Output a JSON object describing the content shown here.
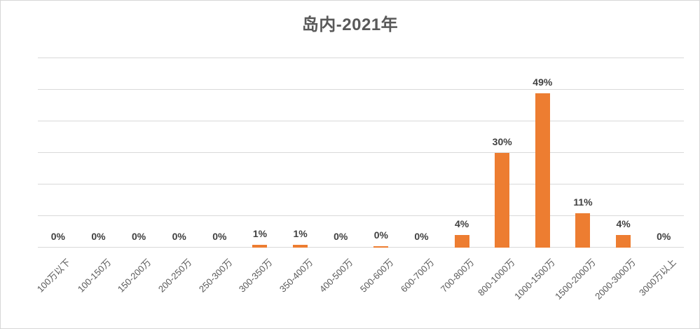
{
  "title": "岛内-2021年",
  "chart_data": {
    "type": "bar",
    "title": "岛内-2021年",
    "categories": [
      "100万以下",
      "100-150万",
      "150-200万",
      "200-250万",
      "250-300万",
      "300-350万",
      "350-400万",
      "400-500万",
      "500-600万",
      "600-700万",
      "700-800万",
      "800-1000万",
      "1000-1500万",
      "1500-2000万",
      "2000-3000万",
      "3000万以上"
    ],
    "values": [
      0,
      0,
      0,
      0,
      0,
      1,
      1,
      0,
      0.4,
      0,
      4,
      30,
      49,
      11,
      4,
      0
    ],
    "labels": [
      "0%",
      "0%",
      "0%",
      "0%",
      "0%",
      "1%",
      "1%",
      "0%",
      "0%",
      "0%",
      "4%",
      "30%",
      "49%",
      "11%",
      "4%",
      "0%"
    ],
    "xlabel": "",
    "ylabel": "",
    "ylim": [
      0,
      60
    ],
    "grid_step": 10,
    "grid": true,
    "legend_position": "none",
    "y_tick_labels_visible": false,
    "colors": {
      "bar": "#ED7D31",
      "data_label": "#404040",
      "axis_label": "#595959",
      "gridline": "#D9D9D9",
      "title": "#595959",
      "frame_border": "#D6D6D6",
      "background": "#FFFFFF"
    }
  }
}
